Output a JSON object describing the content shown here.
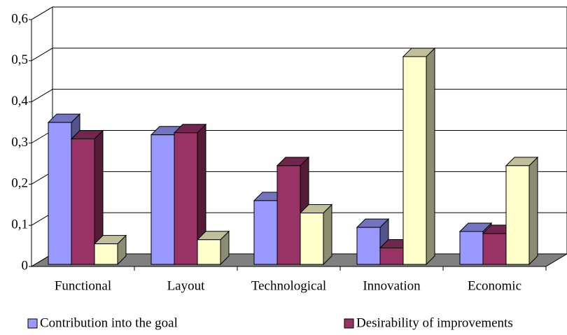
{
  "chart_data": {
    "type": "bar3d",
    "categories": [
      "Functional",
      "Layout",
      "Technological",
      "Innovation",
      "Economic"
    ],
    "series": [
      {
        "name": "Contribution into the goal",
        "color": "#9999ff",
        "values": [
          0.35,
          0.32,
          0.16,
          0.095,
          0.085
        ]
      },
      {
        "name": "Desirability of improvements",
        "color": "#993366",
        "values": [
          0.31,
          0.325,
          0.245,
          0.045,
          0.08
        ]
      },
      {
        "color": "#ffffcc",
        "values": [
          0.055,
          0.065,
          0.13,
          0.51,
          0.245
        ]
      }
    ],
    "ylim": [
      0,
      0.6
    ],
    "yticks": [
      0,
      {
        "value": 0.1,
        "label": "0,1"
      },
      {
        "value": 0.2,
        "label": "0,2"
      },
      {
        "value": 0.3,
        "label": "0,3"
      },
      {
        "value": 0.4,
        "label": "0,4"
      },
      {
        "value": 0.5,
        "label": "0,5"
      },
      {
        "value": 0.6,
        "label": "0,6"
      }
    ],
    "grid": true
  }
}
